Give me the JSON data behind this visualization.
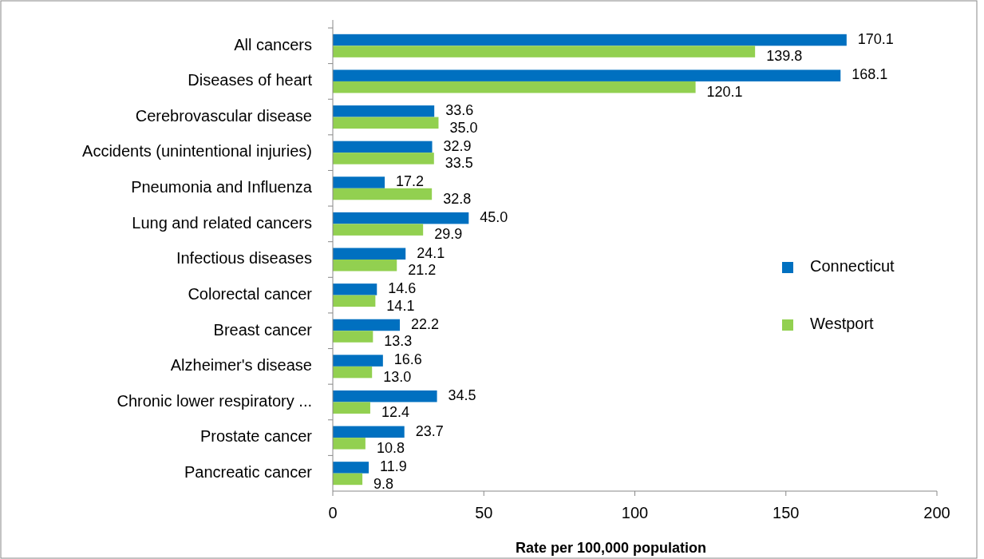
{
  "chart_data": {
    "type": "bar",
    "orientation": "horizontal",
    "xlabel": "Rate per 100,000 population",
    "categories": [
      "All cancers",
      "Diseases of heart",
      "Cerebrovascular disease",
      "Accidents (unintentional injuries)",
      "Pneumonia and Influenza",
      "Lung and related cancers",
      "Infectious diseases",
      "Colorectal cancer",
      "Breast cancer",
      "Alzheimer's disease",
      "Chronic lower respiratory ...",
      "Prostate cancer",
      "Pancreatic cancer"
    ],
    "series": [
      {
        "name": "Connecticut",
        "color": "#0070c0",
        "values": [
          170.1,
          168.1,
          33.6,
          32.9,
          17.2,
          45.0,
          24.1,
          14.6,
          22.2,
          16.6,
          34.5,
          23.7,
          11.9
        ],
        "value_labels": [
          "170.1",
          "168.1",
          "33.6",
          "32.9",
          "17.2",
          "45.0",
          "24.1",
          "14.6",
          "22.2",
          "16.6",
          "34.5",
          "23.7",
          "11.9"
        ]
      },
      {
        "name": "Westport",
        "color": "#92d050",
        "values": [
          139.8,
          120.1,
          35.0,
          33.5,
          32.8,
          29.9,
          21.2,
          14.1,
          13.3,
          13.0,
          12.4,
          10.8,
          9.8
        ],
        "value_labels": [
          "139.8",
          "120.1",
          "35.0",
          "33.5",
          "32.8",
          "29.9",
          "21.2",
          "14.1",
          "13.3",
          "13.0",
          "12.4",
          "10.8",
          "9.8"
        ]
      }
    ],
    "xlim": [
      0,
      200
    ],
    "xticks": [
      0,
      50,
      100,
      150,
      200
    ],
    "legend": "right",
    "grid": false
  }
}
